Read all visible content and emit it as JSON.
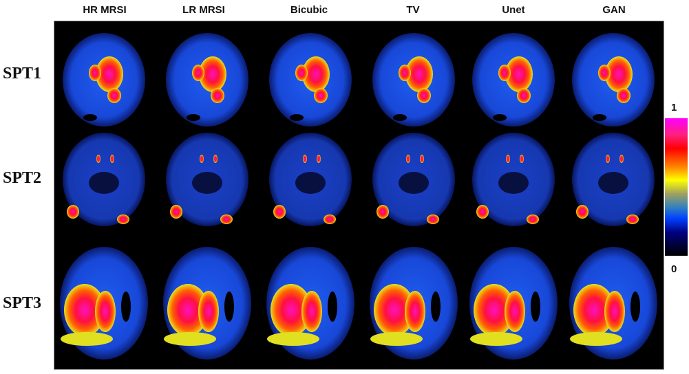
{
  "columns": [
    "HR MRSI",
    "LR MRSI",
    "Bicubic",
    "TV",
    "Unet",
    "GAN"
  ],
  "rows": [
    "SPT1",
    "SPT2",
    "SPT3"
  ],
  "colorbar": {
    "max_label": "1",
    "min_label": "0",
    "colormap": [
      "#000000",
      "#000080",
      "#0040ff",
      "#ffff00",
      "#ff0000",
      "#ff00ff"
    ]
  }
}
